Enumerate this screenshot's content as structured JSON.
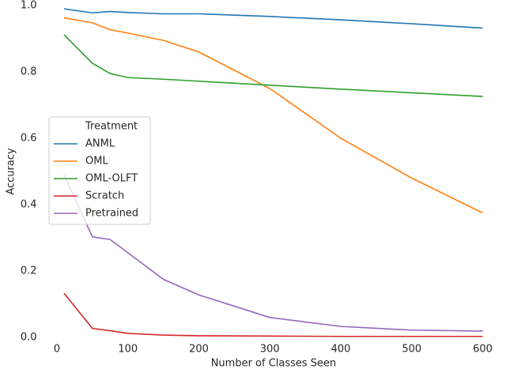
{
  "chart_data": {
    "type": "line",
    "x_label": "Number of Classes Seen",
    "y_label": "Accuracy",
    "x": [
      10,
      50,
      75,
      100,
      150,
      200,
      300,
      400,
      500,
      600
    ],
    "series": [
      {
        "name": "ANML",
        "color": "#1f77b4",
        "values": [
          0.99,
          0.978,
          0.982,
          0.979,
          0.975,
          0.975,
          0.967,
          0.957,
          0.945,
          0.932
        ]
      },
      {
        "name": "OML",
        "color": "#ff7f0e",
        "values": [
          0.963,
          0.948,
          0.927,
          0.917,
          0.895,
          0.86,
          0.75,
          0.6,
          0.48,
          0.375
        ]
      },
      {
        "name": "OML-OLFT",
        "color": "#2ca02c",
        "values": [
          0.912,
          0.826,
          0.795,
          0.783,
          0.778,
          0.772,
          0.76,
          0.748,
          0.737,
          0.726
        ]
      },
      {
        "name": "Scratch",
        "color": "#d62728",
        "values": [
          0.133,
          0.027,
          0.02,
          0.012,
          0.007,
          0.005,
          0.004,
          0.003,
          0.003,
          0.003
        ]
      },
      {
        "name": "Pretrained",
        "color": "#9467bd",
        "values": [
          0.49,
          0.303,
          0.295,
          0.255,
          0.175,
          0.128,
          0.06,
          0.033,
          0.022,
          0.019
        ]
      }
    ],
    "legend_title": "Treatment",
    "legend": "center left",
    "xlim": [
      -19.5,
      629.5
    ],
    "xticks": [
      0,
      100,
      200,
      300,
      400,
      500,
      600
    ],
    "ylim": [
      0,
      1.0
    ],
    "yticks": [
      {
        "value": 0,
        "label": "0.0"
      },
      0.2,
      0.4,
      0.6,
      0.8,
      {
        "value": 1.0,
        "label": "1.0"
      }
    ]
  }
}
